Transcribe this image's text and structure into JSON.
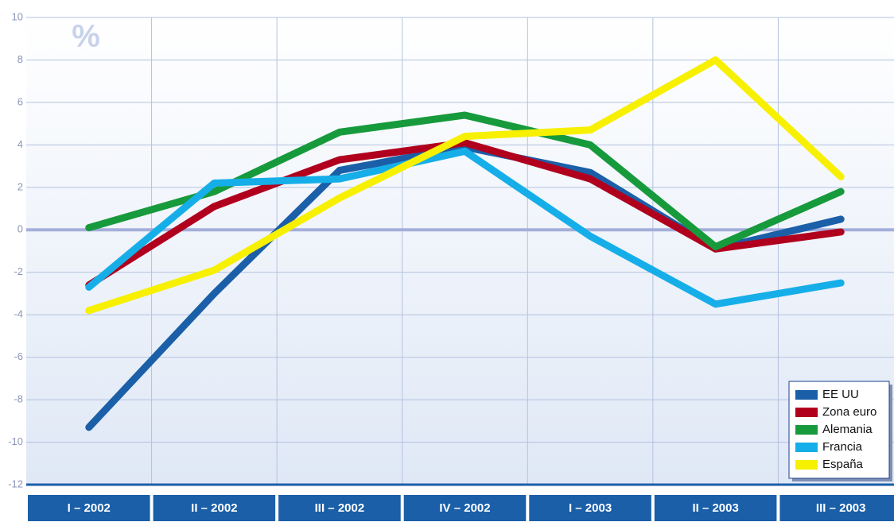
{
  "chart_data": {
    "type": "line",
    "annotation": "%",
    "categories": [
      "I – 2002",
      "II – 2002",
      "III – 2002",
      "IV – 2002",
      "I – 2003",
      "II – 2003",
      "III – 2003"
    ],
    "series": [
      {
        "name": "EE UU",
        "color": "#1a5fa8",
        "values": [
          -9.3,
          -3.0,
          2.8,
          3.9,
          2.7,
          -0.9,
          0.5
        ]
      },
      {
        "name": "Zona euro",
        "color": "#b0001e",
        "values": [
          -2.6,
          1.1,
          3.3,
          4.1,
          2.4,
          -0.9,
          -0.1
        ]
      },
      {
        "name": "Alemania",
        "color": "#179a3c",
        "values": [
          0.1,
          1.8,
          4.6,
          5.4,
          4.0,
          -0.8,
          1.8
        ]
      },
      {
        "name": "Francia",
        "color": "#16aee8",
        "values": [
          -2.7,
          2.2,
          2.4,
          3.7,
          -0.3,
          -3.5,
          -2.5
        ]
      },
      {
        "name": "España",
        "color": "#f7f000",
        "values": [
          -3.8,
          -1.9,
          1.5,
          4.4,
          4.7,
          8.0,
          2.5
        ]
      }
    ],
    "ylim": [
      -12,
      10
    ],
    "yticks": [
      -12,
      -10,
      -8,
      -6,
      -4,
      -2,
      0,
      2,
      4,
      6,
      8,
      10
    ],
    "grid": true,
    "legend": "lower right"
  }
}
